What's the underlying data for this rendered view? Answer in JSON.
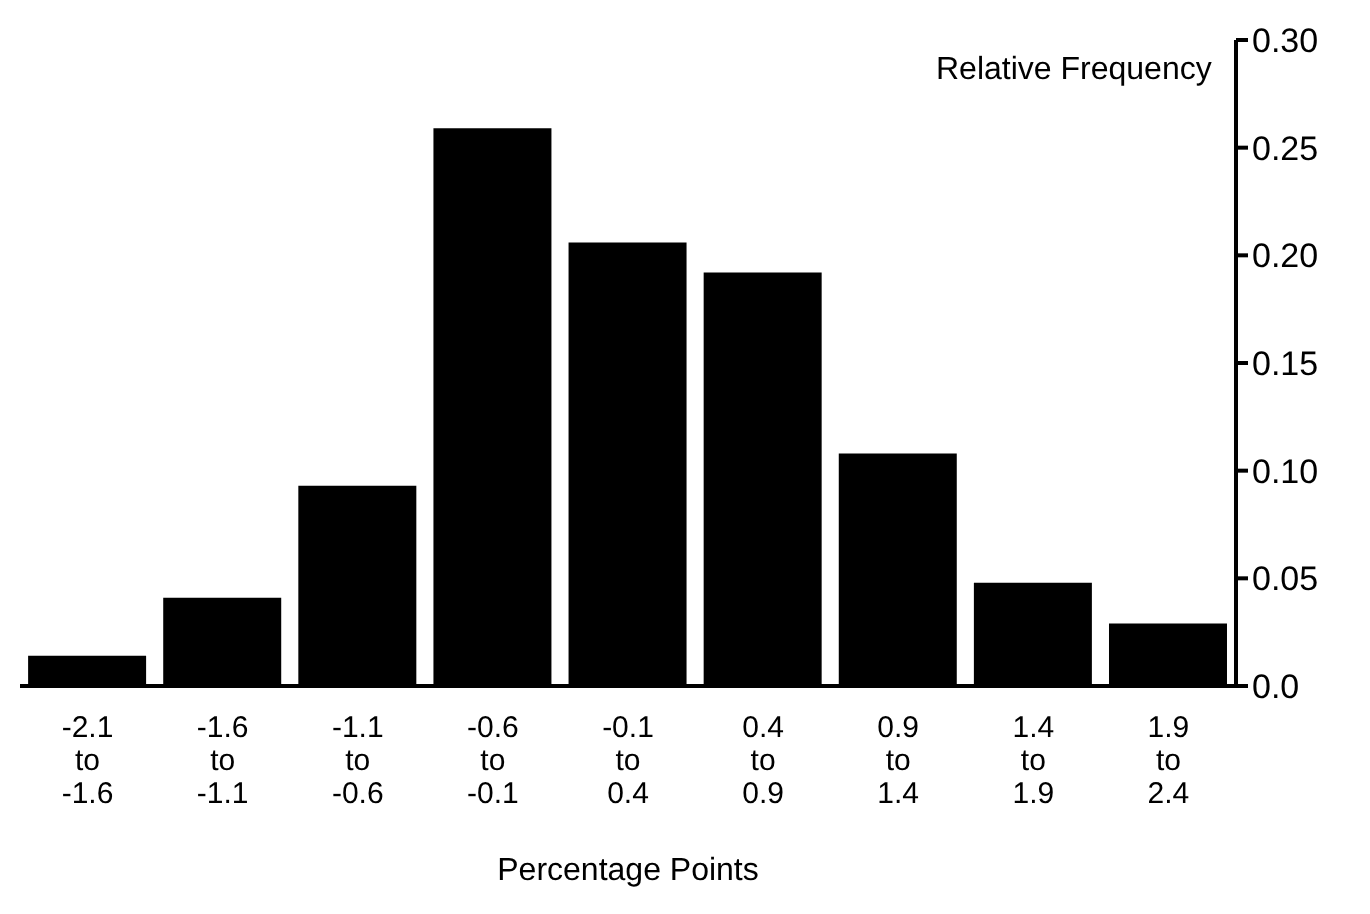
{
  "chart_data": {
    "type": "bar",
    "xlabel": "Percentage Points",
    "ylabel": "Relative Frequency",
    "categories": [
      "-2.1 to -1.6",
      "-1.6 to -1.1",
      "-1.1 to -0.6",
      "-0.6 to -0.1",
      "-0.1 to 0.4",
      "0.4 to 0.9",
      "0.9 to 1.4",
      "1.4 to 1.9",
      "1.9 to 2.4"
    ],
    "values": [
      0.014,
      0.041,
      0.093,
      0.259,
      0.206,
      0.192,
      0.108,
      0.048,
      0.029
    ],
    "color": "#000000",
    "ylim": [
      0,
      0.3
    ],
    "yticks": [
      {
        "value": 0,
        "label": "0.0"
      },
      0.05,
      {
        "value": 0.1,
        "label": "0.10"
      },
      0.15,
      {
        "value": 0.2,
        "label": "0.20"
      },
      0.25,
      {
        "value": 0.3,
        "label": "0.30"
      }
    ],
    "grid": false,
    "legend": false
  }
}
